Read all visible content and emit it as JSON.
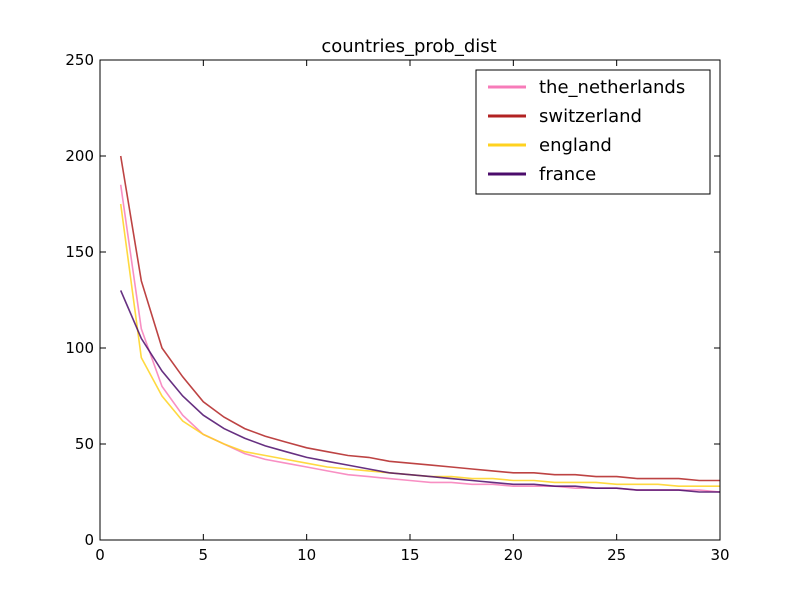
{
  "chart_data": {
    "type": "line",
    "title": "countries_prob_dist",
    "xlabel": "",
    "ylabel": "",
    "xlim": [
      0,
      30
    ],
    "ylim": [
      0,
      250
    ],
    "xticks": [
      0,
      5,
      10,
      15,
      20,
      25,
      30
    ],
    "yticks": [
      0,
      50,
      100,
      150,
      200,
      250
    ],
    "grid": false,
    "legend_position": "upper-right",
    "x": [
      1,
      2,
      3,
      4,
      5,
      6,
      7,
      8,
      9,
      10,
      11,
      12,
      13,
      14,
      15,
      16,
      17,
      18,
      19,
      20,
      21,
      22,
      23,
      24,
      25,
      26,
      27,
      28,
      29,
      30
    ],
    "series": [
      {
        "name": "the_netherlands",
        "color": "#f77bb9",
        "values": [
          185,
          110,
          80,
          65,
          55,
          50,
          45,
          42,
          40,
          38,
          36,
          34,
          33,
          32,
          31,
          30,
          30,
          29,
          29,
          28,
          28,
          28,
          27,
          27,
          27,
          26,
          26,
          26,
          26,
          25
        ]
      },
      {
        "name": "switzerland",
        "color": "#b22222",
        "values": [
          200,
          135,
          100,
          85,
          72,
          64,
          58,
          54,
          51,
          48,
          46,
          44,
          43,
          41,
          40,
          39,
          38,
          37,
          36,
          35,
          35,
          34,
          34,
          33,
          33,
          32,
          32,
          32,
          31,
          31
        ]
      },
      {
        "name": "england",
        "color": "#ffd21f",
        "values": [
          175,
          95,
          75,
          62,
          55,
          50,
          46,
          44,
          42,
          40,
          38,
          37,
          36,
          35,
          34,
          33,
          33,
          32,
          32,
          31,
          31,
          30,
          30,
          30,
          29,
          29,
          29,
          28,
          28,
          28
        ]
      },
      {
        "name": "france",
        "color": "#4b0c6b",
        "values": [
          130,
          105,
          88,
          75,
          65,
          58,
          53,
          49,
          46,
          43,
          41,
          39,
          37,
          35,
          34,
          33,
          32,
          31,
          30,
          29,
          29,
          28,
          28,
          27,
          27,
          26,
          26,
          26,
          25,
          25
        ]
      }
    ]
  }
}
